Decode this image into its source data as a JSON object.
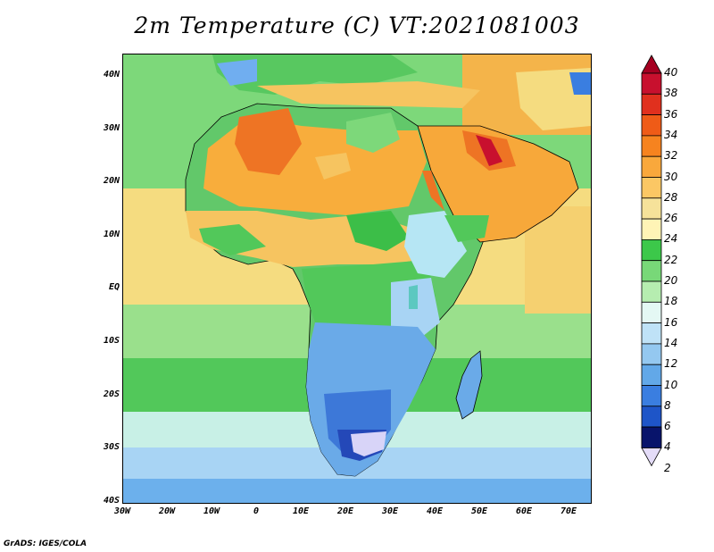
{
  "title": "2m Temperature (C) VT:2021081003",
  "credit": "GrADS: IGES/COLA",
  "lat_labels": [
    "40N",
    "30N",
    "20N",
    "10N",
    "EQ",
    "10S",
    "20S",
    "30S",
    "40S"
  ],
  "lon_labels": [
    "30W",
    "20W",
    "10W",
    "0",
    "10E",
    "20E",
    "30E",
    "40E",
    "50E",
    "60E",
    "70E"
  ],
  "colorbar": {
    "labels": [
      "40",
      "38",
      "36",
      "34",
      "32",
      "30",
      "28",
      "26",
      "24",
      "22",
      "20",
      "18",
      "16",
      "14",
      "12",
      "10",
      "8",
      "6",
      "4",
      "2"
    ],
    "colors": [
      "#a50021",
      "#c8102e",
      "#e0301e",
      "#ef5b17",
      "#f6831f",
      "#f9a83c",
      "#fbc764",
      "#f6e29a",
      "#fff4b6",
      "#3cc84a",
      "#78d878",
      "#b6edb0",
      "#e4f8f4",
      "#bfe2f7",
      "#94c8f0",
      "#62a8e8",
      "#3a7ee0",
      "#1e55c8",
      "#0c2b94",
      "#08146b"
    ]
  }
}
